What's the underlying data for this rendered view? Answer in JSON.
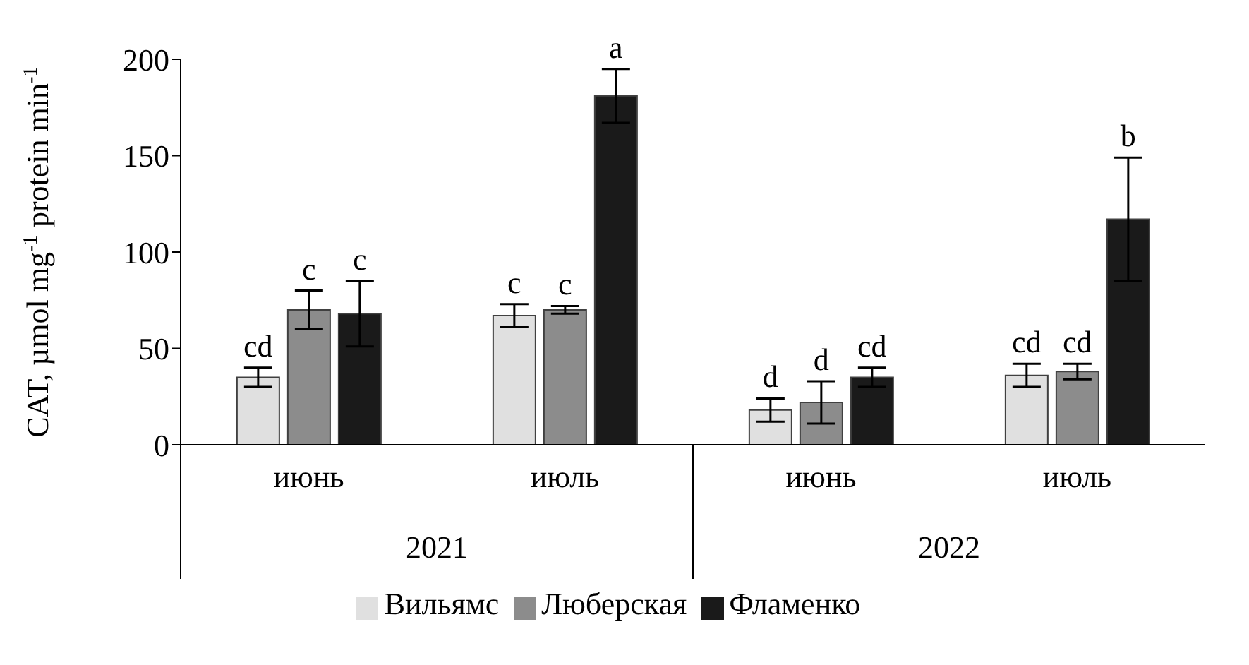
{
  "chart_data": {
    "type": "bar",
    "ylabel": "CAT, µmol mg$^{-1}$ protein min$^{-1}$",
    "categories": [
      "июнь",
      "июль",
      "июнь",
      "июль"
    ],
    "series": [
      {
        "name": "Вильямс",
        "color": "#e0e0e0",
        "values": [
          35,
          67,
          18,
          36
        ],
        "errors": [
          5,
          6,
          6,
          6
        ],
        "value_labels": [
          "cd",
          "c",
          "d",
          "cd"
        ]
      },
      {
        "name": "Люберская",
        "color": "#8c8c8c",
        "values": [
          70,
          70,
          22,
          38
        ],
        "errors": [
          10,
          2,
          11,
          4
        ],
        "value_labels": [
          "c",
          "c",
          "d",
          "cd"
        ]
      },
      {
        "name": "Фламенко",
        "color": "#1a1a1a",
        "values": [
          68,
          181,
          35,
          117
        ],
        "errors": [
          17,
          14,
          5,
          32
        ],
        "value_labels": [
          "c",
          "a",
          "cd",
          "b"
        ]
      }
    ],
    "annotations": [
      "2021",
      "2022"
    ],
    "ylim": [
      0,
      200
    ],
    "yticks": [
      0,
      50,
      100,
      150,
      200
    ],
    "legend": "bottom"
  }
}
